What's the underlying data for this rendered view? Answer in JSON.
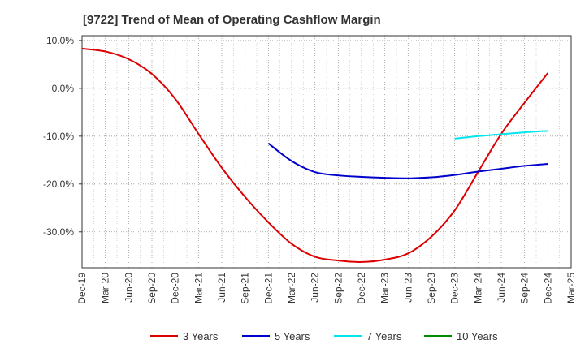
{
  "chart_data": {
    "type": "line",
    "title": "[9722]  Trend of Mean of Operating Cashflow Margin",
    "xlabel": "",
    "ylabel": "",
    "categories": [
      "Dec-19",
      "Mar-20",
      "Jun-20",
      "Sep-20",
      "Dec-20",
      "Mar-21",
      "Jun-21",
      "Sep-21",
      "Dec-21",
      "Mar-22",
      "Jun-22",
      "Sep-22",
      "Dec-22",
      "Mar-23",
      "Jun-23",
      "Sep-23",
      "Dec-23",
      "Mar-24",
      "Jun-24",
      "Sep-24",
      "Dec-24",
      "Mar-25"
    ],
    "ylim": [
      -37.5,
      11.0
    ],
    "yticks": [
      10,
      0,
      -10,
      -20,
      -30
    ],
    "ytick_labels": [
      "10.0%",
      "0.0%",
      "-10.0%",
      "-20.0%",
      "-30.0%"
    ],
    "grid": true,
    "legend_position": "bottom",
    "series": [
      {
        "name": "3 Years",
        "color": "#dd0000",
        "values": [
          8.3,
          7.7,
          6.1,
          3.0,
          -2.2,
          -9.5,
          -16.6,
          -22.7,
          -28.0,
          -32.5,
          -35.2,
          -36.0,
          -36.3,
          -35.8,
          -34.5,
          -31.0,
          -25.5,
          -17.5,
          -9.5,
          -3.0,
          3.2,
          null
        ]
      },
      {
        "name": "5 Years",
        "color": "#0000cc",
        "values": [
          null,
          null,
          null,
          null,
          null,
          null,
          null,
          null,
          -11.5,
          -15.2,
          -17.5,
          -18.2,
          -18.5,
          -18.7,
          -18.8,
          -18.6,
          -18.1,
          -17.4,
          -16.8,
          -16.2,
          -15.8,
          null
        ]
      },
      {
        "name": "7 Years",
        "color": "#00e5ee",
        "values": [
          null,
          null,
          null,
          null,
          null,
          null,
          null,
          null,
          null,
          null,
          null,
          null,
          null,
          null,
          null,
          null,
          -10.5,
          -10.0,
          -9.6,
          -9.2,
          -8.9,
          null
        ]
      },
      {
        "name": "10 Years",
        "color": "#008800",
        "values": [
          null,
          null,
          null,
          null,
          null,
          null,
          null,
          null,
          null,
          null,
          null,
          null,
          null,
          null,
          null,
          null,
          null,
          null,
          null,
          null,
          null,
          null
        ]
      }
    ]
  }
}
